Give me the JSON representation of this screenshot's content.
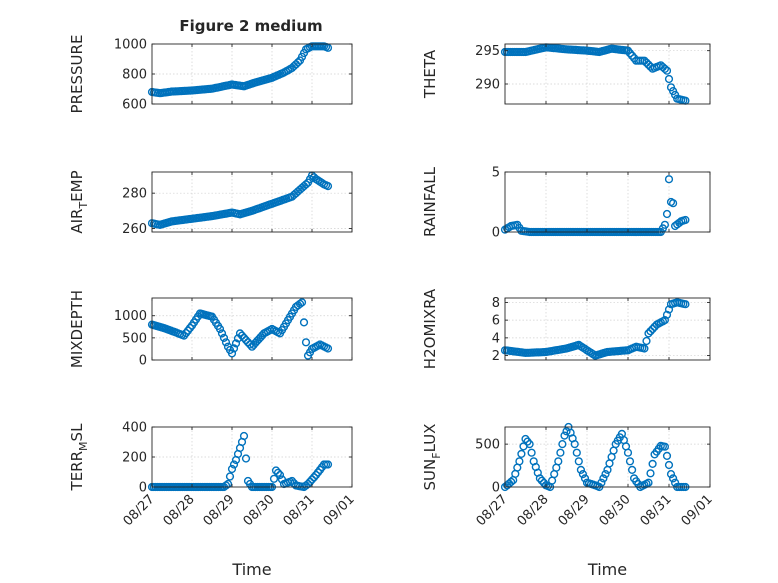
{
  "chart_data": {
    "type": "scatter",
    "title": "Figure 2 medium",
    "grid": true,
    "marker": "circle",
    "series_color": "#0072BD",
    "x_tick_labels": [
      "08/27",
      "08/28",
      "08/29",
      "08/30",
      "08/31",
      "09/01"
    ],
    "xlabel": "Time",
    "subplots": [
      {
        "id": "pressure",
        "ylabel_main": "PRESSURE",
        "ylabel_sub": "",
        "ylabel_tail": "",
        "ylim": [
          600,
          1000
        ],
        "yticks": [
          600,
          800,
          1000
        ],
        "x_tick_labels": [],
        "xlabel": "",
        "knots": [
          [
            0.0,
            680
          ],
          [
            0.2,
            672
          ],
          [
            0.5,
            683
          ],
          [
            1.0,
            690
          ],
          [
            1.5,
            702
          ],
          [
            2.0,
            730
          ],
          [
            2.3,
            718
          ],
          [
            2.6,
            745
          ],
          [
            3.0,
            775
          ],
          [
            3.3,
            810
          ],
          [
            3.5,
            840
          ],
          [
            3.7,
            890
          ],
          [
            3.85,
            965
          ],
          [
            4.0,
            985
          ],
          [
            4.3,
            985
          ],
          [
            4.4,
            975
          ]
        ]
      },
      {
        "id": "theta",
        "ylabel_main": "THETA",
        "ylabel_sub": "",
        "ylabel_tail": "",
        "ylim": [
          287,
          296
        ],
        "yticks": [
          290,
          295
        ],
        "x_tick_labels": [],
        "xlabel": "",
        "knots": [
          [
            0.0,
            294.8
          ],
          [
            0.5,
            294.8
          ],
          [
            1.0,
            295.5
          ],
          [
            1.5,
            295.2
          ],
          [
            2.0,
            295.0
          ],
          [
            2.3,
            294.8
          ],
          [
            2.6,
            295.3
          ],
          [
            3.0,
            295.0
          ],
          [
            3.2,
            293.5
          ],
          [
            3.4,
            293.5
          ],
          [
            3.6,
            292.3
          ],
          [
            3.8,
            292.8
          ],
          [
            3.95,
            292.0
          ],
          [
            4.05,
            289.5
          ],
          [
            4.2,
            287.8
          ],
          [
            4.4,
            287.5
          ]
        ]
      },
      {
        "id": "airtemp",
        "ylabel_main": "AIR",
        "ylabel_sub": "T",
        "ylabel_tail": "EMP",
        "ylim": [
          258,
          292
        ],
        "yticks": [
          260,
          280
        ],
        "x_tick_labels": [],
        "xlabel": "",
        "knots": [
          [
            0.0,
            263
          ],
          [
            0.2,
            262
          ],
          [
            0.5,
            264
          ],
          [
            1.0,
            265.5
          ],
          [
            1.5,
            267
          ],
          [
            2.0,
            269
          ],
          [
            2.2,
            268
          ],
          [
            2.5,
            270
          ],
          [
            3.0,
            274
          ],
          [
            3.5,
            278
          ],
          [
            3.7,
            282
          ],
          [
            3.9,
            286
          ],
          [
            4.0,
            290
          ],
          [
            4.1,
            288
          ],
          [
            4.3,
            285
          ],
          [
            4.4,
            284
          ]
        ]
      },
      {
        "id": "rainfall",
        "ylabel_main": "RAINFALL",
        "ylabel_sub": "",
        "ylabel_tail": "",
        "ylim": [
          0,
          5
        ],
        "yticks": [
          0,
          5
        ],
        "x_tick_labels": [],
        "xlabel": "",
        "knots": [
          [
            0.0,
            0.2
          ],
          [
            0.15,
            0.5
          ],
          [
            0.3,
            0.6
          ],
          [
            0.4,
            0.1
          ],
          [
            0.6,
            0.0
          ],
          [
            3.8,
            0.0
          ],
          [
            3.9,
            0.6
          ],
          [
            3.95,
            1.5
          ],
          [
            4.0,
            4.4
          ],
          [
            4.05,
            2.5
          ],
          [
            4.1,
            2.4
          ],
          [
            4.15,
            0.5
          ],
          [
            4.3,
            0.9
          ],
          [
            4.4,
            1.0
          ]
        ]
      },
      {
        "id": "mixdepth",
        "ylabel_main": "MIXDEPTH",
        "ylabel_sub": "",
        "ylabel_tail": "",
        "ylim": [
          0,
          1400
        ],
        "yticks": [
          0,
          500,
          1000
        ],
        "x_tick_labels": [],
        "xlabel": "",
        "knots": [
          [
            0.0,
            800
          ],
          [
            0.3,
            720
          ],
          [
            0.6,
            620
          ],
          [
            0.8,
            550
          ],
          [
            1.0,
            780
          ],
          [
            1.2,
            1050
          ],
          [
            1.5,
            980
          ],
          [
            1.7,
            700
          ],
          [
            1.9,
            300
          ],
          [
            2.0,
            150
          ],
          [
            2.2,
            600
          ],
          [
            2.4,
            400
          ],
          [
            2.5,
            300
          ],
          [
            2.8,
            600
          ],
          [
            3.0,
            700
          ],
          [
            3.2,
            600
          ],
          [
            3.4,
            900
          ],
          [
            3.6,
            1200
          ],
          [
            3.75,
            1300
          ],
          [
            3.85,
            400
          ],
          [
            3.9,
            100
          ],
          [
            4.0,
            250
          ],
          [
            4.2,
            350
          ],
          [
            4.4,
            260
          ]
        ]
      },
      {
        "id": "h2omixra",
        "ylabel_main": "H2OMIXRA",
        "ylabel_sub": "",
        "ylabel_tail": "",
        "ylim": [
          1.5,
          8.5
        ],
        "yticks": [
          2,
          4,
          6,
          8
        ],
        "x_tick_labels": [],
        "xlabel": "",
        "knots": [
          [
            0.0,
            2.6
          ],
          [
            0.5,
            2.3
          ],
          [
            1.0,
            2.4
          ],
          [
            1.5,
            2.8
          ],
          [
            1.8,
            3.2
          ],
          [
            2.0,
            2.6
          ],
          [
            2.2,
            2.0
          ],
          [
            2.5,
            2.4
          ],
          [
            3.0,
            2.6
          ],
          [
            3.2,
            3.0
          ],
          [
            3.4,
            2.8
          ],
          [
            3.5,
            4.5
          ],
          [
            3.7,
            5.5
          ],
          [
            3.9,
            6.0
          ],
          [
            4.05,
            7.8
          ],
          [
            4.2,
            8.0
          ],
          [
            4.4,
            7.8
          ]
        ]
      },
      {
        "id": "terrmsl",
        "ylabel_main": "TERR",
        "ylabel_sub": "M",
        "ylabel_tail": "SL",
        "ylim": [
          0,
          400
        ],
        "yticks": [
          0,
          200,
          400
        ],
        "x_tick_labels": [
          "08/27",
          "08/28",
          "08/29",
          "08/30",
          "08/31",
          "09/01"
        ],
        "xlabel": "Time",
        "knots": [
          [
            0.0,
            0
          ],
          [
            1.8,
            0
          ],
          [
            1.9,
            20
          ],
          [
            2.0,
            120
          ],
          [
            2.1,
            180
          ],
          [
            2.2,
            260
          ],
          [
            2.3,
            340
          ],
          [
            2.4,
            40
          ],
          [
            2.5,
            0
          ],
          [
            3.0,
            0
          ],
          [
            3.1,
            110
          ],
          [
            3.2,
            80
          ],
          [
            3.3,
            20
          ],
          [
            3.5,
            40
          ],
          [
            3.6,
            10
          ],
          [
            3.8,
            0
          ],
          [
            3.9,
            20
          ],
          [
            4.1,
            80
          ],
          [
            4.3,
            150
          ],
          [
            4.4,
            150
          ]
        ]
      },
      {
        "id": "sunflux",
        "ylabel_main": "SUN",
        "ylabel_sub": "F",
        "ylabel_tail": "LUX",
        "ylim": [
          0,
          700
        ],
        "yticks": [
          0,
          500
        ],
        "x_tick_labels": [
          "08/27",
          "08/28",
          "08/29",
          "08/30",
          "08/31",
          "09/01"
        ],
        "xlabel": "Time",
        "knots": [
          [
            0.0,
            0
          ],
          [
            0.2,
            80
          ],
          [
            0.35,
            300
          ],
          [
            0.5,
            560
          ],
          [
            0.6,
            500
          ],
          [
            0.7,
            300
          ],
          [
            0.85,
            100
          ],
          [
            1.0,
            20
          ],
          [
            1.1,
            0
          ],
          [
            1.3,
            300
          ],
          [
            1.45,
            600
          ],
          [
            1.55,
            700
          ],
          [
            1.7,
            500
          ],
          [
            1.85,
            200
          ],
          [
            2.0,
            50
          ],
          [
            2.2,
            20
          ],
          [
            2.3,
            0
          ],
          [
            2.5,
            200
          ],
          [
            2.7,
            500
          ],
          [
            2.85,
            620
          ],
          [
            3.0,
            400
          ],
          [
            3.15,
            100
          ],
          [
            3.3,
            0
          ],
          [
            3.5,
            50
          ],
          [
            3.65,
            380
          ],
          [
            3.8,
            480
          ],
          [
            3.9,
            470
          ],
          [
            4.05,
            150
          ],
          [
            4.2,
            0
          ],
          [
            4.4,
            0
          ]
        ]
      }
    ]
  }
}
